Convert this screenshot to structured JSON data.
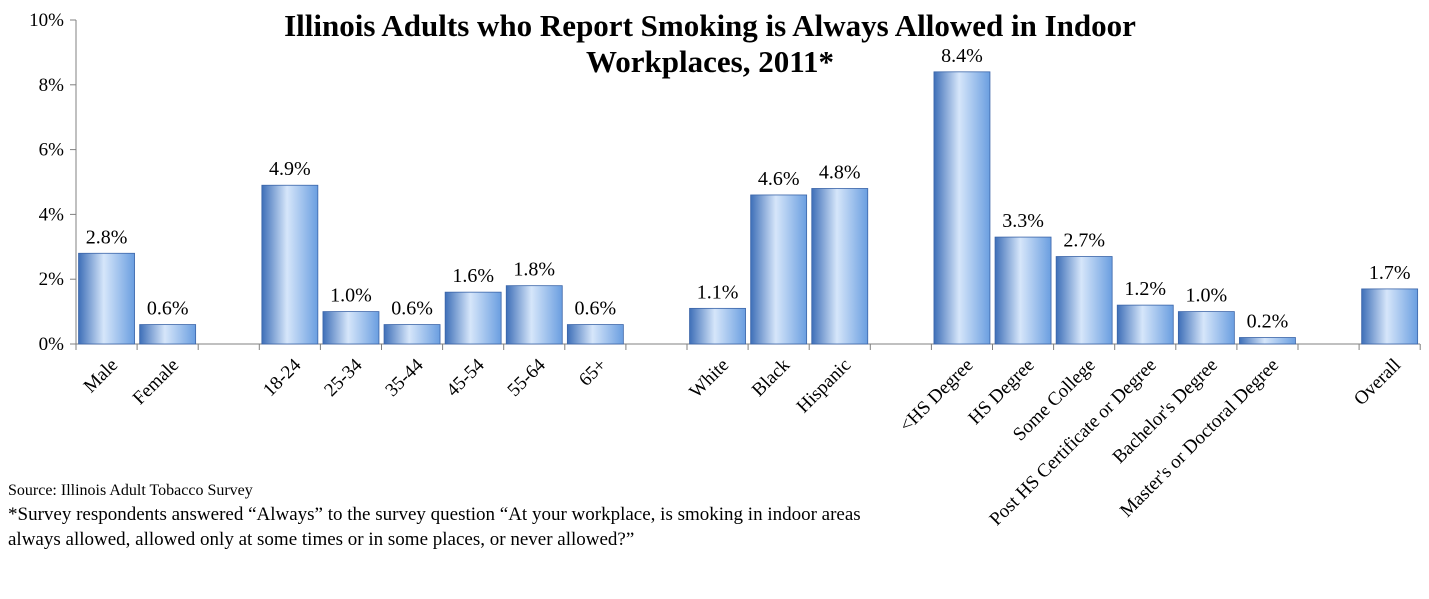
{
  "chart_data": {
    "type": "bar",
    "title_line1": "Illinois Adults who Report Smoking is Always Allowed in Indoor",
    "title_line2": "Workplaces, 2011*",
    "ylim": [
      0,
      10
    ],
    "yticks": [
      {
        "value": 0,
        "label": "0%"
      },
      {
        "value": 2,
        "label": "2%"
      },
      {
        "value": 4,
        "label": "4%"
      },
      {
        "value": 6,
        "label": "6%"
      },
      {
        "value": 8,
        "label": "8%"
      },
      {
        "value": 10,
        "label": "10%"
      }
    ],
    "grid": false,
    "groups": [
      {
        "categories": [
          "Male",
          "Female"
        ],
        "values": [
          2.8,
          0.6
        ],
        "labels": [
          "2.8%",
          "0.6%"
        ]
      },
      {
        "categories": [
          "18-24",
          "25-34",
          "35-44",
          "45-54",
          "55-64",
          "65+"
        ],
        "values": [
          4.9,
          1.0,
          0.6,
          1.6,
          1.8,
          0.6
        ],
        "labels": [
          "4.9%",
          "1.0%",
          "0.6%",
          "1.6%",
          "1.8%",
          "0.6%"
        ]
      },
      {
        "categories": [
          "White",
          "Black",
          "Hispanic"
        ],
        "values": [
          1.1,
          4.6,
          4.8
        ],
        "labels": [
          "1.1%",
          "4.6%",
          "4.8%"
        ]
      },
      {
        "categories": [
          "<HS Degree",
          "HS Degree",
          "Some College",
          "Post HS Certificate or Degree",
          "Bachelor's Degree",
          "Master's or Doctoral Degree"
        ],
        "values": [
          8.4,
          3.3,
          2.7,
          1.2,
          1.0,
          0.2
        ],
        "labels": [
          "8.4%",
          "3.3%",
          "2.7%",
          "1.2%",
          "1.0%",
          "0.2%"
        ]
      },
      {
        "categories": [
          "Overall"
        ],
        "values": [
          1.7
        ],
        "labels": [
          "1.7%"
        ]
      }
    ],
    "bar_color": "#6A9EE0",
    "bar_highlight": "#D6E6FA",
    "bar_shadow": "#3E6FB8"
  },
  "notes": {
    "source": "Source: Illinois Adult Tobacco Survey",
    "footnote": "*Survey respondents answered “Always” to the survey question “At your workplace, is smoking in indoor areas always allowed, allowed only at some times or in some places, or never allowed?”"
  }
}
